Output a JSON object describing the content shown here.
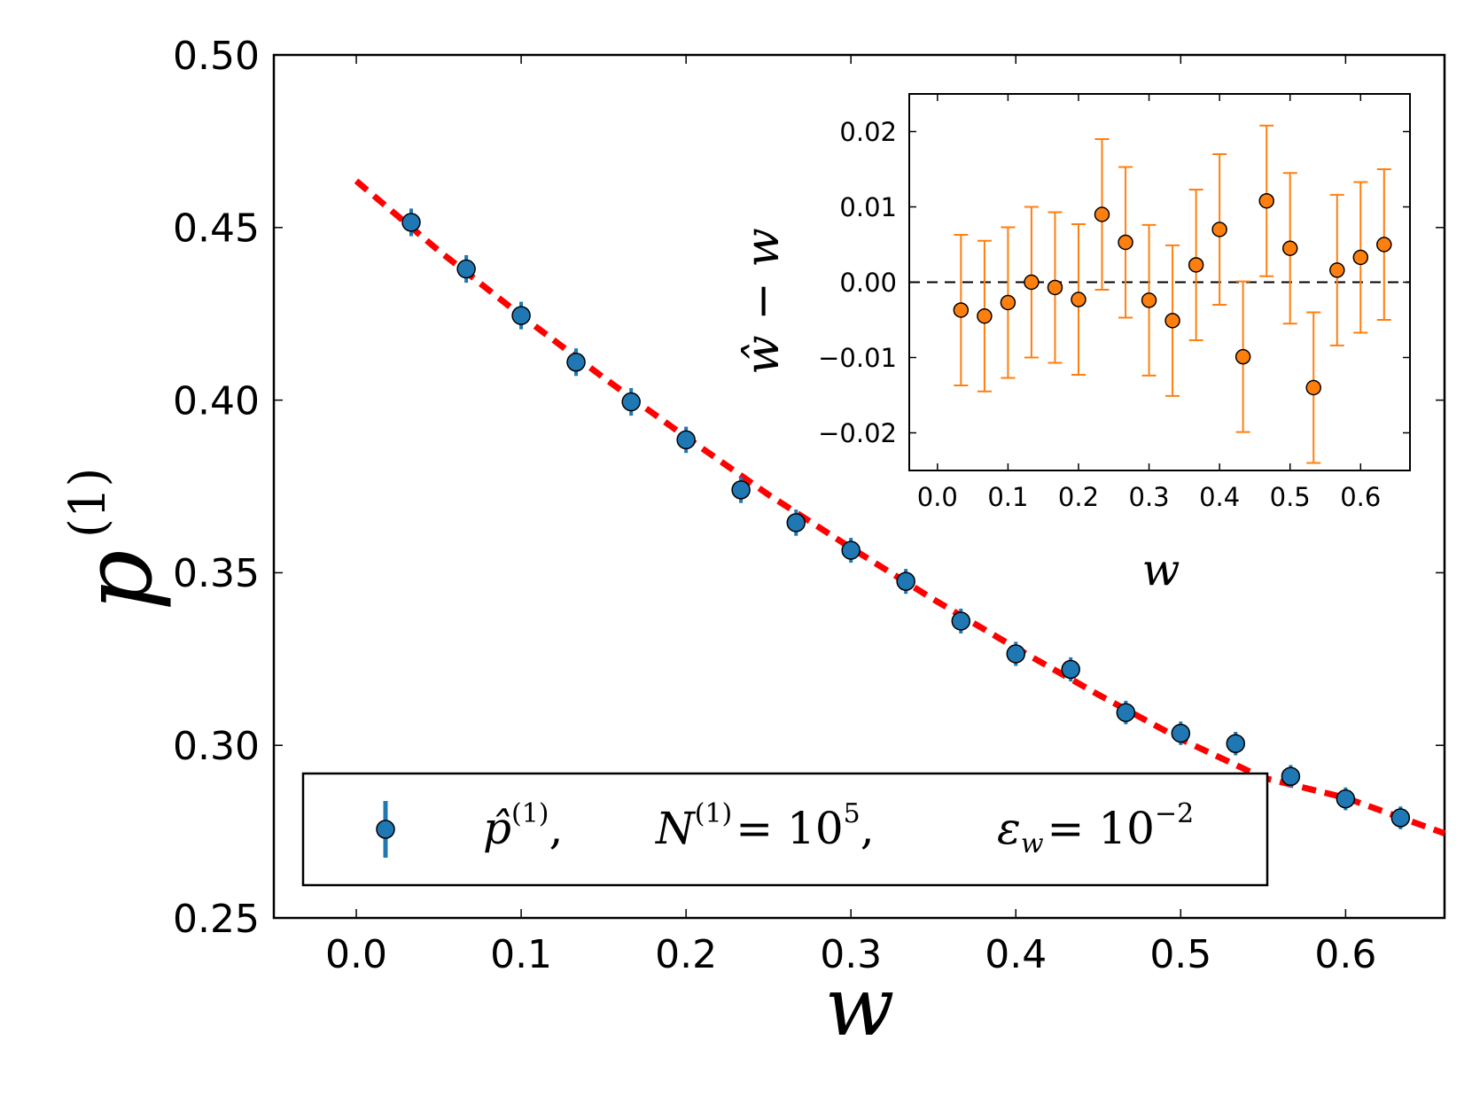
{
  "chart_data": [
    {
      "type": "scatter",
      "name": "main",
      "xlabel": "w",
      "ylabel_base": "p",
      "ylabel_sup": "(1)",
      "xlim": [
        -0.05,
        0.66
      ],
      "ylim": [
        0.25,
        0.5
      ],
      "xticks": [
        "0.0",
        "0.1",
        "0.2",
        "0.3",
        "0.4",
        "0.5",
        "0.6"
      ],
      "yticks": [
        "0.25",
        "0.30",
        "0.35",
        "0.40",
        "0.45",
        "0.50"
      ],
      "series": [
        {
          "name": "p-hat-1",
          "kind": "errorbar",
          "color": "#1f77b4",
          "x": [
            0.0333,
            0.0667,
            0.1,
            0.1333,
            0.1667,
            0.2,
            0.2333,
            0.2667,
            0.3,
            0.3333,
            0.3667,
            0.4,
            0.4333,
            0.4667,
            0.5,
            0.5333,
            0.5667,
            0.6,
            0.6333
          ],
          "y": [
            0.4515,
            0.438,
            0.4245,
            0.411,
            0.3995,
            0.3885,
            0.374,
            0.3645,
            0.3565,
            0.3475,
            0.336,
            0.3265,
            0.322,
            0.3095,
            0.3035,
            0.3005,
            0.291,
            0.2845,
            0.279
          ],
          "yerr": [
            0.004,
            0.004,
            0.004,
            0.004,
            0.004,
            0.0038,
            0.0038,
            0.0038,
            0.0036,
            0.0036,
            0.0036,
            0.0035,
            0.0035,
            0.0034,
            0.0034,
            0.0034,
            0.0033,
            0.0033,
            0.0033
          ]
        },
        {
          "name": "fit",
          "kind": "dashed-line",
          "color": "#ff0000",
          "x": [
            0.0,
            0.05,
            0.1,
            0.15,
            0.2,
            0.25,
            0.3,
            0.35,
            0.4,
            0.45,
            0.5,
            0.55,
            0.6,
            0.66
          ],
          "y": [
            0.4635,
            0.4433,
            0.4245,
            0.4065,
            0.3893,
            0.3726,
            0.3572,
            0.3423,
            0.3282,
            0.3147,
            0.3018,
            0.2906,
            0.2848,
            0.2745
          ]
        }
      ],
      "legend": {
        "position": "bottom-center",
        "entries": [
          {
            "symbol": "p̂",
            "sup": "(1)",
            "sep1": ",",
            "n_sym": "N",
            "n_sup": "(1)",
            "n_eq": "= 10",
            "n_exp": "5",
            "sep2": ",",
            "eps_sym": "ε",
            "eps_sub": "w",
            "eps_eq": "= 10",
            "eps_exp": "−2"
          }
        ]
      }
    },
    {
      "type": "scatter",
      "name": "inset",
      "position": "top-right",
      "xlabel": "w",
      "ylabel": "ŵ − w",
      "xlim": [
        -0.04,
        0.67
      ],
      "ylim": [
        -0.025,
        0.025
      ],
      "xticks": [
        "0.0",
        "0.1",
        "0.2",
        "0.3",
        "0.4",
        "0.5",
        "0.6"
      ],
      "yticks": [
        "−0.02",
        "−0.01",
        "0.00",
        "0.01",
        "0.02"
      ],
      "reference_line": 0.0,
      "series": [
        {
          "name": "residual",
          "kind": "errorbar",
          "color": "#ff7f0e",
          "x": [
            0.0333,
            0.0667,
            0.1,
            0.1333,
            0.1667,
            0.2,
            0.2333,
            0.2667,
            0.3,
            0.3333,
            0.3667,
            0.4,
            0.4333,
            0.4667,
            0.5,
            0.5333,
            0.5667,
            0.6,
            0.6333
          ],
          "y": [
            -0.0037,
            -0.0045,
            -0.0027,
            0.0,
            -0.0007,
            -0.0023,
            0.009,
            0.0053,
            -0.0024,
            -0.0051,
            0.0023,
            0.007,
            -0.0099,
            0.0108,
            0.0045,
            -0.014,
            0.0016,
            0.0033,
            0.005
          ],
          "yerr": [
            0.01,
            0.01,
            0.01,
            0.01,
            0.01,
            0.01,
            0.01,
            0.01,
            0.01,
            0.01,
            0.01,
            0.01,
            0.01,
            0.01,
            0.01,
            0.01,
            0.01,
            0.01,
            0.01
          ]
        }
      ]
    }
  ]
}
